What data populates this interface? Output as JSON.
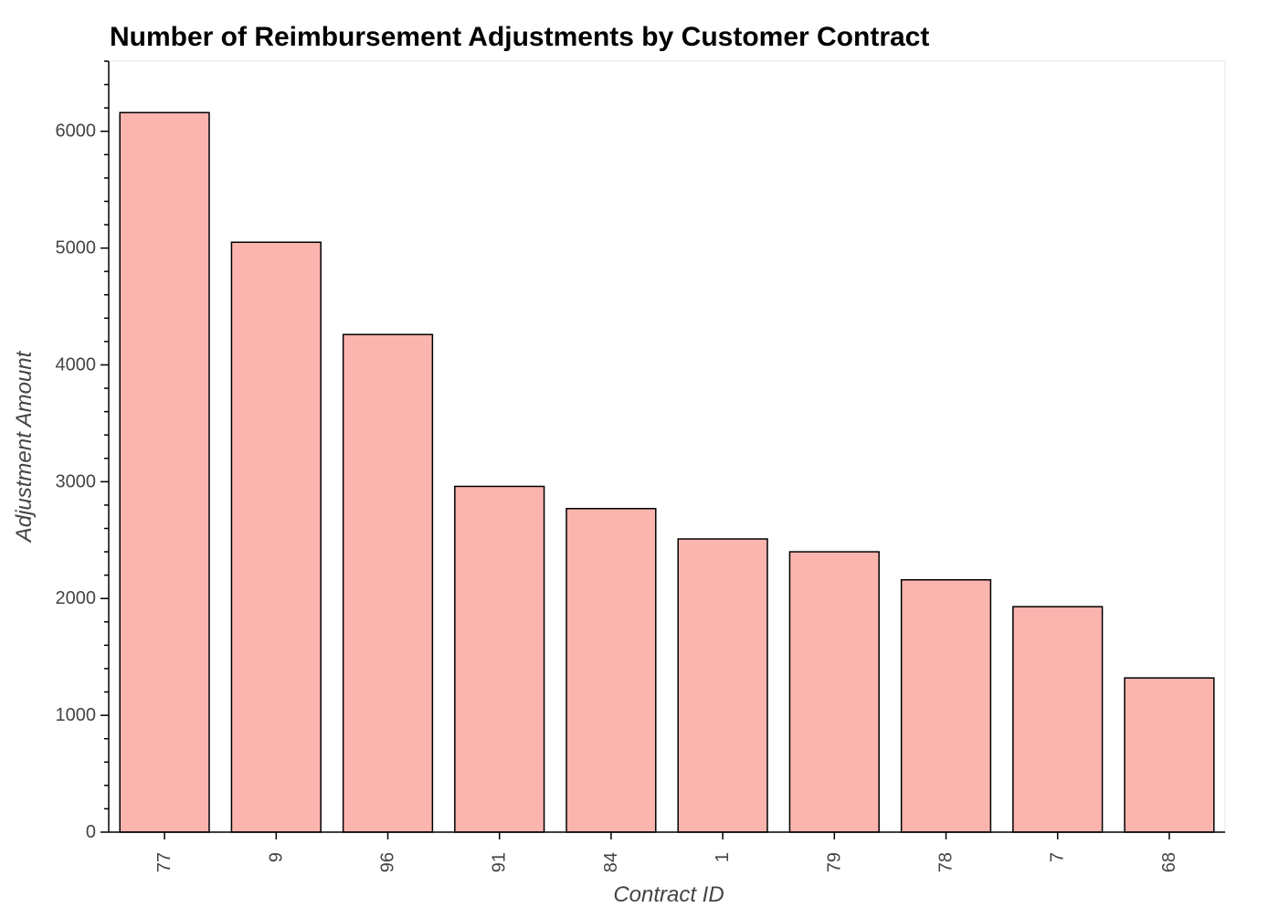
{
  "chart_data": {
    "type": "bar",
    "title": "Number of Reimbursement Adjustments by Customer Contract",
    "xlabel": "Contract ID",
    "ylabel": "Adjustment Amount",
    "categories": [
      "77",
      "9",
      "96",
      "91",
      "84",
      "1",
      "79",
      "78",
      "7",
      "68"
    ],
    "values": [
      6160,
      5050,
      4260,
      2960,
      2770,
      2510,
      2400,
      2160,
      1930,
      1320
    ],
    "ylim": [
      0,
      6600
    ],
    "yticks": [
      0,
      1000,
      2000,
      3000,
      4000,
      5000,
      6000
    ],
    "grid": false,
    "legend": "none",
    "x_tick_rotation": "vertical",
    "colors": {
      "bar_fill": "#fbb4ae",
      "bar_stroke": "#000000",
      "axis": "#000000",
      "frame": "#e5e5e5",
      "tick_label": "#444444",
      "title": "#000000"
    }
  }
}
